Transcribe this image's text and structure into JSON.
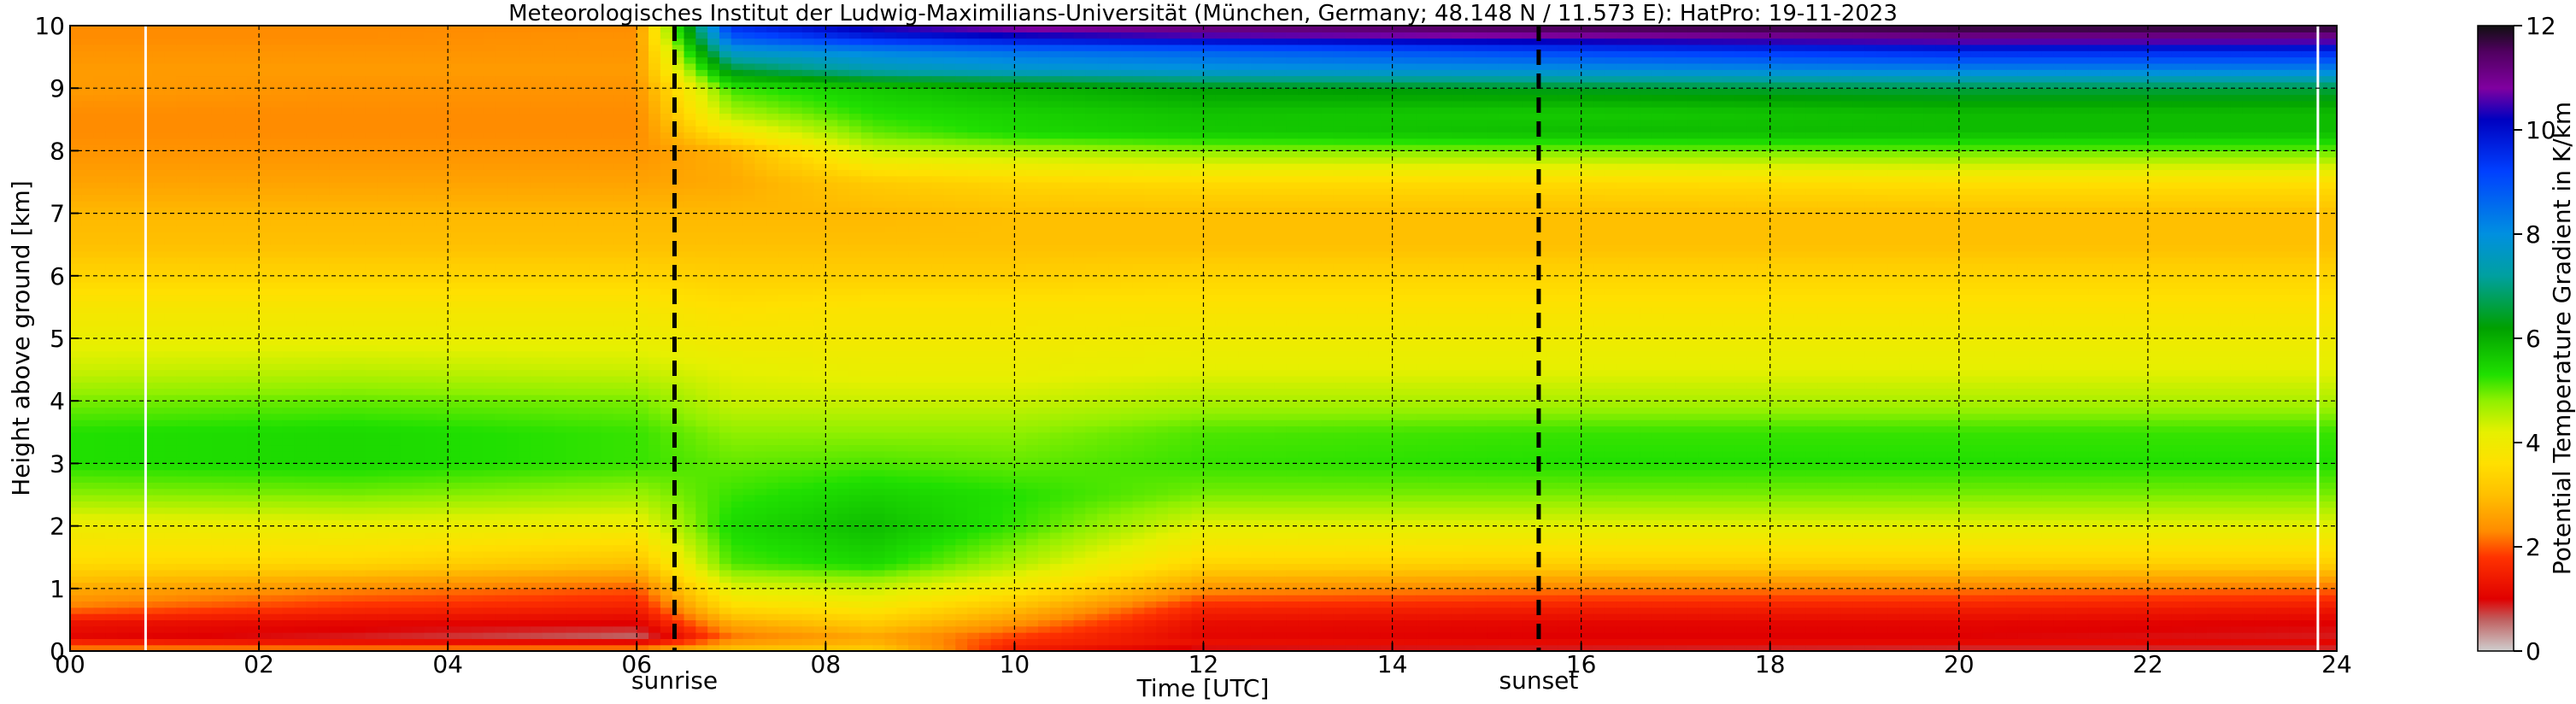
{
  "chart_data": {
    "type": "heatmap",
    "title": "Meteorologisches Institut der Ludwig-Maximilians-Universität (München, Germany; 48.148 N / 11.573 E):    HatPro: 19-11-2023",
    "xlabel": "Time [UTC]",
    "ylabel": "Height above ground [km]",
    "xlim": [
      0,
      24
    ],
    "ylim": [
      0,
      10
    ],
    "x_tick_labels": [
      "00",
      "02",
      "04",
      "06",
      "08",
      "10",
      "12",
      "14",
      "16",
      "18",
      "20",
      "22",
      "24"
    ],
    "x_tick_values": [
      0,
      2,
      4,
      6,
      8,
      10,
      12,
      14,
      16,
      18,
      20,
      22,
      24
    ],
    "y_tick_labels": [
      "0",
      "1",
      "2",
      "3",
      "4",
      "5",
      "6",
      "7",
      "8",
      "9",
      "10"
    ],
    "y_tick_values": [
      0,
      1,
      2,
      3,
      4,
      5,
      6,
      7,
      8,
      9,
      10
    ],
    "grid": true,
    "colorbar": {
      "label": "Potential Temperature Gradient in K/km",
      "range": [
        0,
        12
      ],
      "tick_labels": [
        "0",
        "2",
        "4",
        "6",
        "8",
        "10",
        "12"
      ],
      "tick_values": [
        0,
        2,
        4,
        6,
        8,
        10,
        12
      ],
      "stops": [
        {
          "value": 0.0,
          "color": "#cfcfcf"
        },
        {
          "value": 0.6,
          "color": "#c06060"
        },
        {
          "value": 1.0,
          "color": "#e00000"
        },
        {
          "value": 1.8,
          "color": "#ff3300"
        },
        {
          "value": 2.3,
          "color": "#ff8c00"
        },
        {
          "value": 3.0,
          "color": "#ffc000"
        },
        {
          "value": 3.6,
          "color": "#ffe000"
        },
        {
          "value": 4.2,
          "color": "#e6f000"
        },
        {
          "value": 4.8,
          "color": "#90f000"
        },
        {
          "value": 5.3,
          "color": "#20e000"
        },
        {
          "value": 6.2,
          "color": "#00a000"
        },
        {
          "value": 7.2,
          "color": "#00a0a0"
        },
        {
          "value": 8.0,
          "color": "#0090e0"
        },
        {
          "value": 9.2,
          "color": "#0040ff"
        },
        {
          "value": 10.2,
          "color": "#0000c0"
        },
        {
          "value": 10.8,
          "color": "#8000a0"
        },
        {
          "value": 11.5,
          "color": "#500060"
        },
        {
          "value": 12.0,
          "color": "#101010"
        }
      ]
    },
    "markers": [
      {
        "label": "sunrise",
        "time": 6.4
      },
      {
        "label": "sunset",
        "time": 15.55
      }
    ],
    "gap_lines_time": [
      0.8,
      23.8
    ],
    "field_profiles": {
      "heights_km": [
        0.0,
        0.1,
        0.25,
        0.45,
        0.7,
        1.0,
        1.4,
        2.0,
        2.5,
        3.0,
        3.5,
        4.0,
        4.5,
        5.0,
        5.5,
        6.0,
        6.5,
        7.0,
        7.5,
        8.0,
        8.3,
        8.6,
        9.0,
        9.3,
        9.6,
        9.8,
        10.0
      ],
      "profiles": [
        {
          "time": 0.0,
          "values": [
            2.5,
            1.8,
            1.1,
            1.3,
            2.2,
            2.7,
            3.5,
            4.0,
            4.8,
            5.3,
            5.3,
            4.9,
            4.4,
            4.1,
            3.8,
            3.4,
            3.0,
            2.9,
            2.6,
            2.4,
            2.3,
            2.3,
            2.5,
            2.5,
            2.4,
            2.3,
            2.3
          ]
        },
        {
          "time": 3.0,
          "values": [
            2.7,
            1.5,
            0.9,
            1.1,
            1.7,
            2.3,
            3.4,
            4.1,
            4.9,
            5.4,
            5.4,
            5.0,
            4.5,
            4.1,
            3.8,
            3.4,
            3.0,
            2.9,
            2.6,
            2.4,
            2.3,
            2.3,
            2.4,
            2.5,
            2.4,
            2.3,
            2.3
          ]
        },
        {
          "time": 6.0,
          "values": [
            2.8,
            1.4,
            0.6,
            1.0,
            1.5,
            2.0,
            3.0,
            4.0,
            4.7,
            5.2,
            5.2,
            4.9,
            4.4,
            4.1,
            3.8,
            3.4,
            3.0,
            2.9,
            2.6,
            2.4,
            2.3,
            2.3,
            2.4,
            2.5,
            2.4,
            2.4,
            2.3
          ]
        },
        {
          "time": 7.0,
          "values": [
            3.3,
            2.6,
            2.2,
            2.7,
            3.5,
            4.2,
            5.1,
            5.4,
            5.2,
            5.0,
            4.8,
            4.4,
            4.2,
            3.9,
            3.6,
            3.3,
            3.0,
            2.9,
            2.7,
            2.8,
            3.8,
            4.6,
            5.2,
            6.5,
            7.8,
            8.8,
            9.5
          ]
        },
        {
          "time": 8.5,
          "values": [
            3.4,
            2.9,
            2.7,
            3.2,
            3.8,
            4.4,
            5.4,
            5.8,
            5.5,
            5.1,
            4.8,
            4.4,
            4.1,
            3.9,
            3.7,
            3.3,
            3.0,
            2.9,
            3.2,
            4.4,
            5.0,
            5.3,
            5.6,
            7.4,
            8.2,
            9.6,
            10.5
          ]
        },
        {
          "time": 10.0,
          "values": [
            1.4,
            1.6,
            1.9,
            2.4,
            3.0,
            3.8,
            4.6,
            5.2,
            5.3,
            5.0,
            4.8,
            4.4,
            4.1,
            3.9,
            3.7,
            3.3,
            3.0,
            3.0,
            3.4,
            4.6,
            5.4,
            5.5,
            5.9,
            7.7,
            8.5,
            10.0,
            11.0
          ]
        },
        {
          "time": 12.0,
          "values": [
            0.6,
            1.3,
            1.1,
            1.2,
            1.6,
            2.4,
            3.4,
            4.2,
            4.9,
            5.2,
            5.1,
            4.6,
            4.2,
            4.0,
            3.7,
            3.4,
            3.0,
            3.0,
            3.5,
            4.8,
            5.6,
            5.7,
            6.2,
            7.9,
            8.7,
            10.3,
            11.4
          ]
        },
        {
          "time": 16.0,
          "values": [
            0.6,
            1.2,
            1.0,
            1.1,
            1.5,
            2.2,
            3.3,
            4.2,
            4.9,
            5.3,
            5.2,
            4.6,
            4.2,
            4.0,
            3.7,
            3.4,
            3.0,
            3.0,
            3.5,
            4.9,
            5.8,
            5.6,
            6.4,
            8.0,
            9.2,
            10.6,
            11.8
          ]
        },
        {
          "time": 20.0,
          "values": [
            0.5,
            1.2,
            1.0,
            1.1,
            1.5,
            2.2,
            3.3,
            4.2,
            4.9,
            5.3,
            5.2,
            4.6,
            4.2,
            4.0,
            3.7,
            3.4,
            3.0,
            3.0,
            3.6,
            5.0,
            5.8,
            5.8,
            6.6,
            8.2,
            9.6,
            10.9,
            11.9
          ]
        },
        {
          "time": 24.0,
          "values": [
            0.5,
            1.2,
            0.9,
            1.0,
            1.4,
            2.1,
            3.3,
            4.2,
            4.9,
            5.3,
            5.2,
            4.6,
            4.2,
            4.0,
            3.7,
            3.4,
            3.0,
            3.0,
            3.6,
            5.0,
            5.8,
            5.8,
            6.6,
            8.2,
            9.6,
            10.9,
            11.9
          ]
        }
      ]
    }
  }
}
